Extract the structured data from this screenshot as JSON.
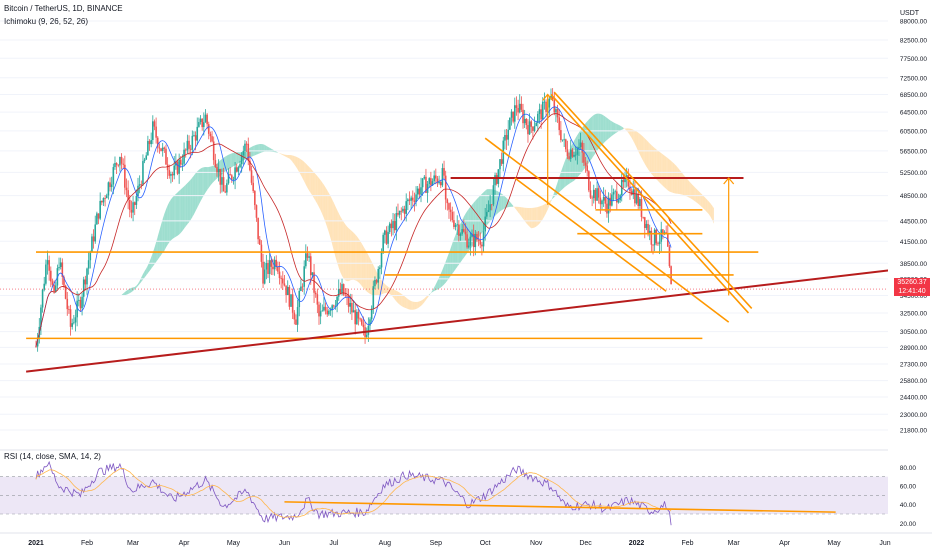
{
  "header": {
    "symbol": "Bitcoin / TetherUS, 1D, BINANCE",
    "indicator": "Ichimoku (9, 26, 52, 26)",
    "rsi_label": "RSI (14, close, SMA, 14, 2)",
    "currency": "USDT"
  },
  "last_price": {
    "value": "35260.37",
    "countdown": "12:41:40"
  },
  "colors": {
    "up": "#26a69a",
    "down": "#ef5350",
    "orange": "#ff9800",
    "red_line": "#b71c1c",
    "cloud_bull": "#4fc3a8",
    "cloud_bear": "#ffcc80",
    "rsi": "#7e57c2",
    "rsi_band": "#ede7f6",
    "kijun": "#c62828",
    "tenkan": "#2962ff"
  },
  "chart_data": [
    {
      "type": "candlestick",
      "title": "Bitcoin / TetherUS, 1D, BINANCE",
      "indicator": "Ichimoku (9, 26, 52, 26)",
      "y_scale": "log",
      "ylim": [
        20500,
        92000
      ],
      "y_ticks": [
        21800,
        23000,
        24400,
        25800,
        27300,
        28900,
        30500,
        32500,
        34500,
        36500,
        38500,
        41500,
        44500,
        48500,
        52500,
        56500,
        60500,
        64500,
        68500,
        72500,
        77500,
        82500,
        88000
      ],
      "x_tick_labels": [
        "2021",
        "Feb",
        "Mar",
        "Apr",
        "May",
        "Jun",
        "Jul",
        "Aug",
        "Sep",
        "Oct",
        "Nov",
        "Dec",
        "2022",
        "Feb",
        "Mar",
        "Apr",
        "May",
        "Jun"
      ],
      "price_path": [
        [
          "2021-01-01",
          29000
        ],
        [
          "2021-01-08",
          40000
        ],
        [
          "2021-01-12",
          34000
        ],
        [
          "2021-01-15",
          39000
        ],
        [
          "2021-01-22",
          31000
        ],
        [
          "2021-01-28",
          34000
        ],
        [
          "2021-02-08",
          46000
        ],
        [
          "2021-02-21",
          56000
        ],
        [
          "2021-02-28",
          45000
        ],
        [
          "2021-03-13",
          61000
        ],
        [
          "2021-03-25",
          52000
        ],
        [
          "2021-04-14",
          63500
        ],
        [
          "2021-04-25",
          49000
        ],
        [
          "2021-05-09",
          58000
        ],
        [
          "2021-05-19",
          37000
        ],
        [
          "2021-05-27",
          39000
        ],
        [
          "2021-06-08",
          32000
        ],
        [
          "2021-06-15",
          40000
        ],
        [
          "2021-06-22",
          32000
        ],
        [
          "2021-07-06",
          35000
        ],
        [
          "2021-07-20",
          30000
        ],
        [
          "2021-07-31",
          41500
        ],
        [
          "2021-08-14",
          47000
        ],
        [
          "2021-08-23",
          50000
        ],
        [
          "2021-09-06",
          52000
        ],
        [
          "2021-09-07",
          46500
        ],
        [
          "2021-09-21",
          41500
        ],
        [
          "2021-09-29",
          42000
        ],
        [
          "2021-10-15",
          61000
        ],
        [
          "2021-10-20",
          66000
        ],
        [
          "2021-10-28",
          61000
        ],
        [
          "2021-11-10",
          67500
        ],
        [
          "2021-11-19",
          56500
        ],
        [
          "2021-11-28",
          57000
        ],
        [
          "2021-12-04",
          49500
        ],
        [
          "2021-12-14",
          47000
        ],
        [
          "2021-12-27",
          51000
        ],
        [
          "2022-01-02",
          47500
        ],
        [
          "2022-01-10",
          42000
        ],
        [
          "2022-01-19",
          42000
        ],
        [
          "2022-01-22",
          35260
        ]
      ],
      "last_price": 35260.37,
      "horizontal_levels": [
        {
          "price": 51500,
          "from": "2021-09-10",
          "to": "2022-03-07",
          "color": "red"
        },
        {
          "price": 46200,
          "from": "2021-12-07",
          "to": "2022-02-10",
          "color": "orange"
        },
        {
          "price": 42600,
          "from": "2021-11-26",
          "to": "2022-02-10",
          "color": "orange"
        },
        {
          "price": 40000,
          "from": "2021-01-01",
          "to": "2022-03-16",
          "color": "orange"
        },
        {
          "price": 37000,
          "from": "2021-08-01",
          "to": "2022-03-01",
          "color": "orange"
        },
        {
          "price": 29800,
          "from": "2020-12-26",
          "to": "2022-02-10",
          "color": "orange"
        }
      ],
      "trend_lines": [
        {
          "from": [
            "2020-12-26",
            26600
          ],
          "to": [
            "2022-06-04",
            37600
          ],
          "color": "red"
        },
        {
          "from": [
            "2021-10-01",
            59000
          ],
          "to": [
            "2022-02-26",
            31500
          ],
          "color": "orange"
        },
        {
          "from": [
            "2021-11-10",
            68500
          ],
          "to": [
            "2022-03-10",
            32500
          ],
          "color": "orange"
        },
        {
          "from": [
            "2021-11-12",
            69000
          ],
          "to": [
            "2022-03-12",
            33000
          ],
          "color": "orange"
        },
        {
          "from": [
            "2021-10-19",
            51500
          ],
          "to": [
            "2022-01-19",
            35000
          ],
          "color": "orange"
        }
      ],
      "arrows": [
        {
          "x": "2022-02-26",
          "from": 34500,
          "to": 51500,
          "color": "orange"
        },
        {
          "x": "2021-11-08",
          "from": 47000,
          "to": 68500,
          "color": "orange"
        }
      ]
    },
    {
      "type": "line",
      "title": "RSI (14, close, SMA, 14, 2)",
      "ylim": [
        15,
        90
      ],
      "y_ticks": [
        20.0,
        40.0,
        60.0,
        80.0
      ],
      "bands": [
        70,
        50,
        30
      ],
      "series": [
        {
          "name": "RSI",
          "values": [
            [
              "2021-01-01",
              70
            ],
            [
              "2021-01-08",
              85
            ],
            [
              "2021-01-15",
              60
            ],
            [
              "2021-01-28",
              50
            ],
            [
              "2021-02-08",
              75
            ],
            [
              "2021-02-21",
              82
            ],
            [
              "2021-02-28",
              55
            ],
            [
              "2021-03-13",
              65
            ],
            [
              "2021-03-25",
              45
            ],
            [
              "2021-04-14",
              66
            ],
            [
              "2021-04-25",
              38
            ],
            [
              "2021-05-09",
              55
            ],
            [
              "2021-05-19",
              25
            ],
            [
              "2021-06-08",
              28
            ],
            [
              "2021-06-15",
              45
            ],
            [
              "2021-06-22",
              30
            ],
            [
              "2021-07-20",
              32
            ],
            [
              "2021-07-31",
              60
            ],
            [
              "2021-08-14",
              72
            ],
            [
              "2021-09-06",
              65
            ],
            [
              "2021-09-21",
              40
            ],
            [
              "2021-10-01",
              50
            ],
            [
              "2021-10-20",
              78
            ],
            [
              "2021-11-10",
              60
            ],
            [
              "2021-11-19",
              38
            ],
            [
              "2021-12-04",
              40
            ],
            [
              "2021-12-14",
              35
            ],
            [
              "2021-12-27",
              45
            ],
            [
              "2022-01-10",
              33
            ],
            [
              "2022-01-19",
              40
            ],
            [
              "2022-01-22",
              22
            ]
          ]
        }
      ],
      "trend_lines": [
        {
          "from": [
            "2021-06-01",
            43
          ],
          "to": [
            "2022-05-02",
            32
          ],
          "color": "orange"
        }
      ]
    }
  ]
}
